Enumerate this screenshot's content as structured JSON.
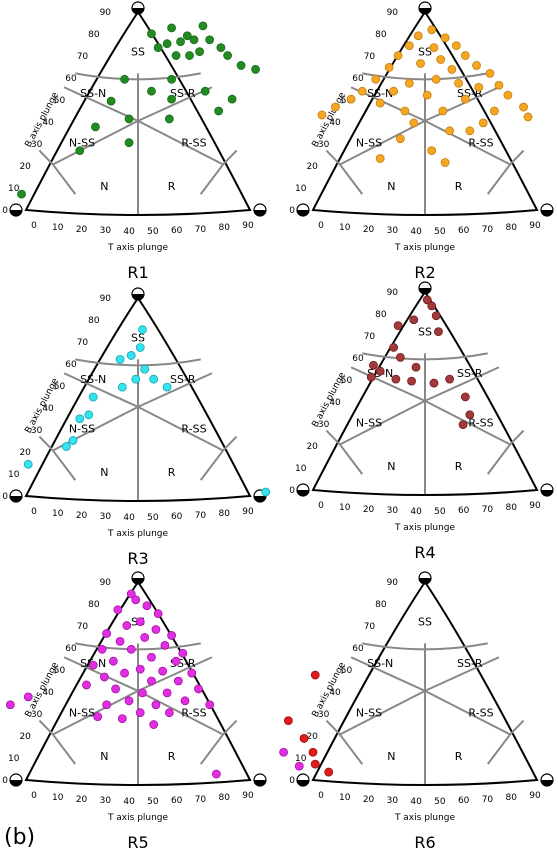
{
  "figure_label": "(b)",
  "axis_labels": {
    "b_axis": "B axis plunge",
    "t_axis": "T axis plunge"
  },
  "plunge_ticks": [
    "0",
    "10",
    "20",
    "30",
    "40",
    "50",
    "60",
    "70",
    "80",
    "90"
  ],
  "regime_labels": [
    "SS",
    "SS-N",
    "SS-R",
    "N-SS",
    "R-SS",
    "N",
    "R"
  ],
  "chart_data": [
    {
      "type": "scatter",
      "name": "R1",
      "color": "#228b22",
      "edge": "#1a6b1a",
      "points_uv": [
        [
          0.12,
          0.89
        ],
        [
          0.18,
          0.82
        ],
        [
          0.3,
          0.92
        ],
        [
          0.26,
          0.84
        ],
        [
          0.38,
          0.85
        ],
        [
          0.44,
          0.88
        ],
        [
          0.5,
          0.86
        ],
        [
          0.58,
          0.93
        ],
        [
          0.64,
          0.86
        ],
        [
          0.74,
          0.82
        ],
        [
          0.34,
          0.78
        ],
        [
          0.46,
          0.78
        ],
        [
          0.55,
          0.8
        ],
        [
          0.8,
          0.78
        ],
        [
          0.92,
          0.73
        ],
        [
          1.05,
          0.71
        ],
        [
          0.3,
          0.66
        ],
        [
          0.6,
          0.6
        ],
        [
          0.84,
          0.56
        ],
        [
          0.72,
          0.5
        ],
        [
          0.3,
          0.56
        ],
        [
          0.12,
          0.6
        ],
        [
          -0.12,
          0.66
        ],
        [
          -0.24,
          0.55
        ],
        [
          -0.08,
          0.46
        ],
        [
          0.28,
          0.46
        ],
        [
          -0.08,
          0.34
        ],
        [
          -0.38,
          0.42
        ],
        [
          -0.52,
          0.3
        ],
        [
          -1.04,
          0.08
        ]
      ]
    },
    {
      "type": "scatter",
      "name": "R2",
      "color": "#f5a623",
      "edge": "#c47f0c",
      "points_uv": [
        [
          0.06,
          0.91
        ],
        [
          -0.06,
          0.88
        ],
        [
          0.18,
          0.87
        ],
        [
          -0.14,
          0.83
        ],
        [
          0.28,
          0.83
        ],
        [
          0.08,
          0.82
        ],
        [
          -0.24,
          0.78
        ],
        [
          0.36,
          0.78
        ],
        [
          0.14,
          0.76
        ],
        [
          -0.04,
          0.74
        ],
        [
          0.24,
          0.71
        ],
        [
          -0.32,
          0.72
        ],
        [
          0.46,
          0.73
        ],
        [
          0.58,
          0.69
        ],
        [
          0.66,
          0.63
        ],
        [
          0.74,
          0.58
        ],
        [
          -0.44,
          0.66
        ],
        [
          -0.56,
          0.6
        ],
        [
          -0.66,
          0.56
        ],
        [
          -0.8,
          0.52
        ],
        [
          0.3,
          0.64
        ],
        [
          0.1,
          0.66
        ],
        [
          -0.14,
          0.64
        ],
        [
          0.48,
          0.62
        ],
        [
          -0.28,
          0.6
        ],
        [
          0.02,
          0.58
        ],
        [
          0.36,
          0.56
        ],
        [
          -0.4,
          0.54
        ],
        [
          0.62,
          0.5
        ],
        [
          -0.18,
          0.5
        ],
        [
          0.16,
          0.5
        ],
        [
          0.52,
          0.44
        ],
        [
          -0.1,
          0.44
        ],
        [
          0.22,
          0.4
        ],
        [
          -0.22,
          0.36
        ],
        [
          0.4,
          0.4
        ],
        [
          0.06,
          0.3
        ],
        [
          0.88,
          0.52
        ],
        [
          0.92,
          0.47
        ],
        [
          -0.92,
          0.48
        ],
        [
          -0.4,
          0.26
        ],
        [
          0.18,
          0.24
        ]
      ]
    },
    {
      "type": "scatter",
      "name": "R3",
      "color": "#33e4f0",
      "edge": "#19a5b0",
      "points_uv": [
        [
          0.04,
          0.84
        ],
        [
          0.02,
          0.75
        ],
        [
          -0.06,
          0.71
        ],
        [
          -0.16,
          0.69
        ],
        [
          0.06,
          0.64
        ],
        [
          0.14,
          0.59
        ],
        [
          -0.02,
          0.59
        ],
        [
          0.26,
          0.55
        ],
        [
          -0.14,
          0.55
        ],
        [
          -0.4,
          0.5
        ],
        [
          -0.44,
          0.41
        ],
        [
          -0.52,
          0.39
        ],
        [
          -0.58,
          0.28
        ],
        [
          -0.64,
          0.25
        ],
        [
          -0.98,
          0.16
        ],
        [
          1.14,
          0.02
        ]
      ]
    },
    {
      "type": "scatter",
      "name": "R4",
      "color": "#a23a3a",
      "edge": "#6e1d1d",
      "points_uv": [
        [
          0.02,
          0.96
        ],
        [
          0.06,
          0.93
        ],
        [
          0.1,
          0.88
        ],
        [
          -0.1,
          0.86
        ],
        [
          -0.24,
          0.83
        ],
        [
          0.12,
          0.8
        ],
        [
          -0.28,
          0.72
        ],
        [
          -0.22,
          0.67
        ],
        [
          -0.08,
          0.62
        ],
        [
          -0.46,
          0.63
        ],
        [
          -0.4,
          0.6
        ],
        [
          -0.48,
          0.57
        ],
        [
          -0.26,
          0.56
        ],
        [
          -0.12,
          0.55
        ],
        [
          0.08,
          0.54
        ],
        [
          0.22,
          0.56
        ],
        [
          0.36,
          0.47
        ],
        [
          0.4,
          0.38
        ],
        [
          0.34,
          0.33
        ],
        [
          1.66,
          0.05
        ]
      ]
    },
    {
      "type": "scatter",
      "name": "R5",
      "color": "#e22ee2",
      "edge": "#a313a3",
      "points_uv": [
        [
          -0.06,
          0.94
        ],
        [
          -0.02,
          0.91
        ],
        [
          0.08,
          0.88
        ],
        [
          -0.18,
          0.86
        ],
        [
          0.18,
          0.84
        ],
        [
          0.02,
          0.8
        ],
        [
          -0.1,
          0.78
        ],
        [
          0.16,
          0.76
        ],
        [
          -0.28,
          0.74
        ],
        [
          0.3,
          0.73
        ],
        [
          0.06,
          0.72
        ],
        [
          -0.16,
          0.7
        ],
        [
          0.24,
          0.68
        ],
        [
          -0.32,
          0.66
        ],
        [
          -0.06,
          0.66
        ],
        [
          0.4,
          0.64
        ],
        [
          0.12,
          0.62
        ],
        [
          -0.22,
          0.6
        ],
        [
          0.34,
          0.6
        ],
        [
          -0.4,
          0.58
        ],
        [
          0.02,
          0.56
        ],
        [
          0.22,
          0.55
        ],
        [
          -0.12,
          0.54
        ],
        [
          0.48,
          0.54
        ],
        [
          -0.3,
          0.52
        ],
        [
          0.12,
          0.5
        ],
        [
          0.36,
          0.5
        ],
        [
          -0.46,
          0.48
        ],
        [
          -0.2,
          0.46
        ],
        [
          0.04,
          0.44
        ],
        [
          0.26,
          0.44
        ],
        [
          0.54,
          0.46
        ],
        [
          -0.08,
          0.4
        ],
        [
          0.16,
          0.38
        ],
        [
          0.42,
          0.4
        ],
        [
          -0.28,
          0.38
        ],
        [
          0.02,
          0.34
        ],
        [
          0.28,
          0.34
        ],
        [
          -0.14,
          0.31
        ],
        [
          0.14,
          0.28
        ],
        [
          -0.36,
          0.32
        ],
        [
          0.64,
          0.38
        ],
        [
          -1.14,
          0.38
        ],
        [
          -0.98,
          0.42
        ],
        [
          1.3,
          0.14
        ],
        [
          1.44,
          0.07
        ],
        [
          0.7,
          0.03
        ]
      ]
    },
    {
      "type": "scatter",
      "name": "R6",
      "color": "#e01c1c",
      "edge": "#9e0e0e",
      "points_uv": [
        [
          -0.98,
          0.53
        ],
        [
          -1.22,
          0.3
        ],
        [
          -1.08,
          0.21
        ],
        [
          -1.0,
          0.14
        ],
        [
          -0.98,
          0.08
        ],
        [
          -0.86,
          0.04
        ]
      ]
    }
  ]
}
